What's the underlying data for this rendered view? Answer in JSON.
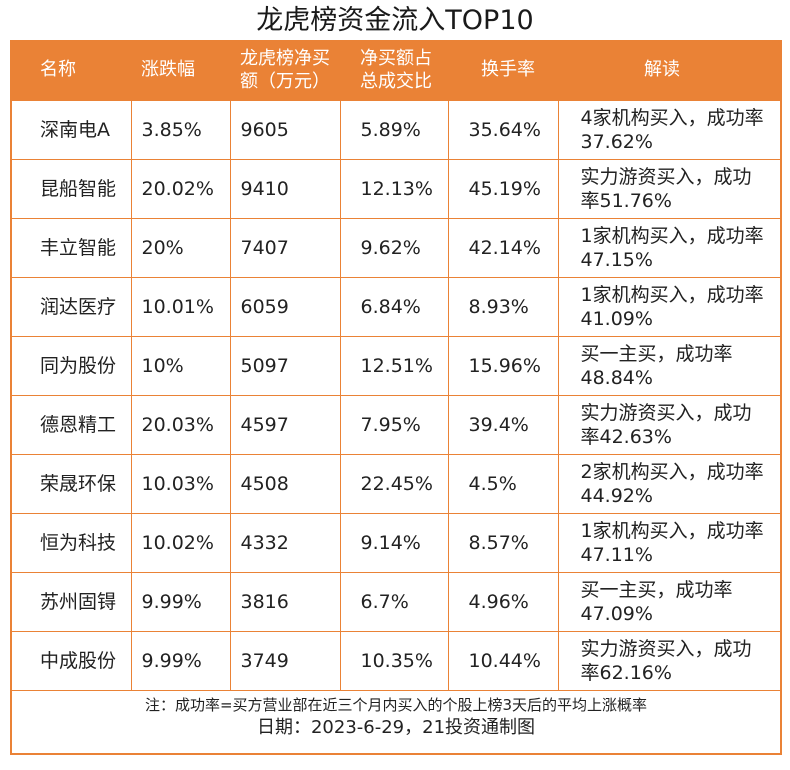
{
  "title": "龙虎榜资金流入TOP10",
  "headers": [
    "名称",
    "涨跌幅",
    "龙虎榜净买额（万元）",
    "净买额占总成交比",
    "换手率",
    "解读"
  ],
  "rows": [
    [
      "深南电A",
      "3.85%",
      "9605",
      "5.89%",
      "35.64%",
      "4家机构买入，成功率37.62%"
    ],
    [
      "昆船智能",
      "20.02%",
      "9410",
      "12.13%",
      "45.19%",
      "实力游资买入，成功率51.76%"
    ],
    [
      "丰立智能",
      "20%",
      "7407",
      "9.62%",
      "42.14%",
      "1家机构买入，成功率47.15%"
    ],
    [
      "润达医疗",
      "10.01%",
      "6059",
      "6.84%",
      "8.93%",
      "1家机构买入，成功率41.09%"
    ],
    [
      "同为股份",
      "10%",
      "5097",
      "12.51%",
      "15.96%",
      "买一主买，成功率48.84%"
    ],
    [
      "德恩精工",
      "20.03%",
      "4597",
      "7.95%",
      "39.4%",
      "实力游资买入，成功率42.63%"
    ],
    [
      "荣晟环保",
      "10.03%",
      "4508",
      "22.45%",
      "4.5%",
      "2家机构买入，成功率44.92%"
    ],
    [
      "恒为科技",
      "10.02%",
      "4332",
      "9.14%",
      "8.57%",
      "1家机构买入，成功率47.11%"
    ],
    [
      "苏州固锝",
      "9.99%",
      "3816",
      "6.7%",
      "4.96%",
      "买一主买，成功率47.09%"
    ],
    [
      "中成股份",
      "9.99%",
      "3749",
      "10.35%",
      "10.44%",
      "实力游资买入，成功率62.16%"
    ]
  ],
  "note": "注：成功率=买方营业部在近三个月内买入的个股上榜3天后的平均上涨概率",
  "date": "日期：2023-6-29，21投资通制图",
  "colors": {
    "accent": "#ea8236"
  }
}
